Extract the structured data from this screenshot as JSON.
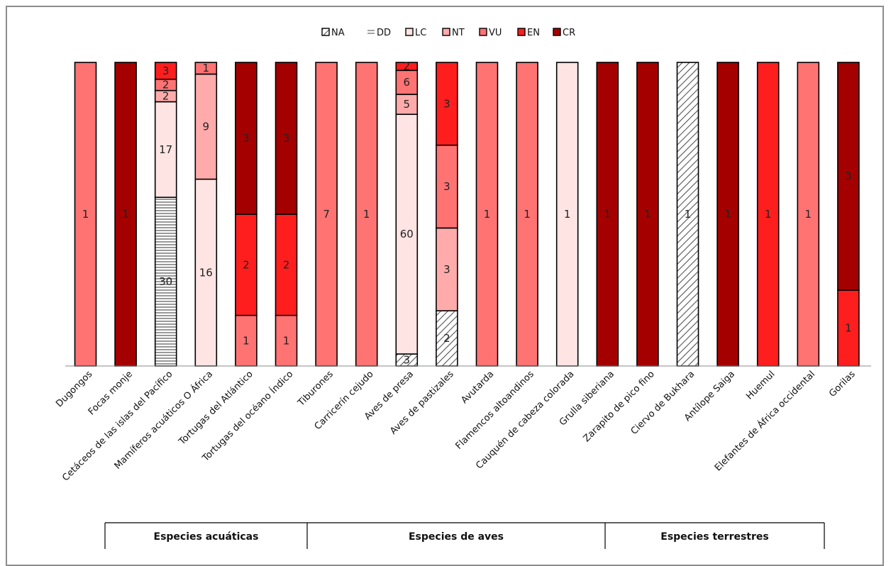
{
  "chart_data": {
    "type": "bar",
    "stacked": true,
    "normalized": true,
    "title": "",
    "xlabel": "",
    "ylabel": "",
    "legend": {
      "placement": "top-center",
      "entries": [
        "NA",
        "DD",
        "LC",
        "NT",
        "VU",
        "EN",
        "CR"
      ]
    },
    "series_colors": {
      "NA": "hatch-diagonal",
      "DD": "hatch-horizontal",
      "LC": "#ffe4e4",
      "NT": "#ffabab",
      "VU": "#ff7373",
      "EN": "#ff1e1e",
      "CR": "#a50000"
    },
    "categories": [
      "Dugongos",
      "Focas monje",
      "Cetáceos de las islas del Pacífico",
      "Mamíferos acuáticos O África",
      "Tortugas del Atlántico",
      "Tortugas del océano Índico",
      "Tiburones",
      "Carricerín cejudo",
      "Aves de presa",
      "Aves de pastizales",
      "Avutarda",
      "Flamencos altoandinos",
      "Cauquén de cabeza colorada",
      "Grulla siberiana",
      "Zarapito de pico fino",
      "Ciervo de Bukhara",
      "Antílope Saiga",
      "Huemul",
      "Elefantes de África occidental",
      "Gorilas"
    ],
    "series": [
      {
        "name": "NA",
        "values": [
          0,
          0,
          0,
          0,
          0,
          0,
          0,
          0,
          3,
          2,
          0,
          0,
          0,
          0,
          0,
          1,
          0,
          0,
          0,
          0
        ]
      },
      {
        "name": "DD",
        "values": [
          0,
          0,
          30,
          0,
          0,
          0,
          0,
          0,
          0,
          0,
          0,
          0,
          0,
          0,
          0,
          0,
          0,
          0,
          0,
          0
        ]
      },
      {
        "name": "LC",
        "values": [
          0,
          0,
          17,
          16,
          0,
          0,
          0,
          0,
          60,
          0,
          0,
          0,
          1,
          0,
          0,
          0,
          0,
          0,
          0,
          0
        ]
      },
      {
        "name": "NT",
        "values": [
          0,
          0,
          2,
          9,
          0,
          0,
          0,
          0,
          5,
          3,
          0,
          0,
          0,
          0,
          0,
          0,
          0,
          0,
          0,
          0
        ]
      },
      {
        "name": "VU",
        "values": [
          1,
          0,
          2,
          1,
          1,
          1,
          7,
          1,
          6,
          3,
          1,
          1,
          0,
          0,
          0,
          0,
          0,
          0,
          1,
          0
        ]
      },
      {
        "name": "EN",
        "values": [
          0,
          0,
          3,
          0,
          2,
          2,
          0,
          0,
          2,
          3,
          0,
          0,
          0,
          0,
          0,
          0,
          0,
          1,
          0,
          1
        ]
      },
      {
        "name": "CR",
        "values": [
          0,
          1,
          0,
          0,
          3,
          3,
          0,
          0,
          0,
          0,
          0,
          0,
          0,
          1,
          1,
          0,
          1,
          0,
          0,
          3
        ]
      }
    ],
    "groups": [
      {
        "label": "Especies acuáticas",
        "from": 0,
        "to": 5
      },
      {
        "label": "Especies de aves",
        "from": 6,
        "to": 12
      },
      {
        "label": "Especies terrestres",
        "from": 13,
        "to": 19
      }
    ]
  }
}
